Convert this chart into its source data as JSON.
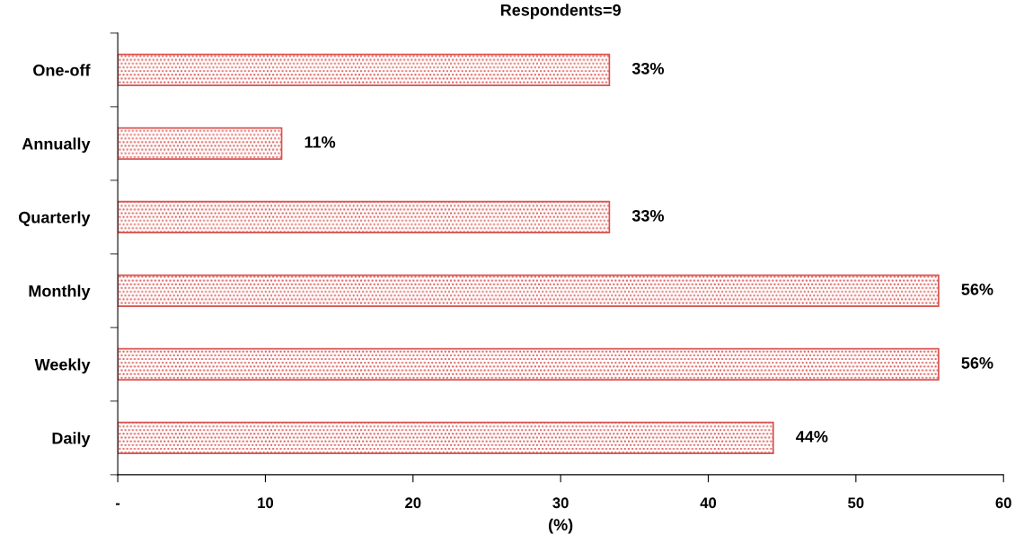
{
  "chart_data": {
    "type": "bar",
    "orientation": "horizontal",
    "title": "Respondents=9",
    "xlabel": "(%)",
    "categories": [
      "One-off",
      "Annually",
      "Quarterly",
      "Monthly",
      "Weekly",
      "Daily"
    ],
    "values": [
      33.3,
      11.1,
      33.3,
      55.6,
      55.6,
      44.4
    ],
    "value_labels": [
      "33%",
      "11%",
      "33%",
      "56%",
      "56%",
      "44%"
    ],
    "color": "#d9534f",
    "xlim": [
      0,
      60
    ],
    "xticks": [
      {
        "value": 0,
        "label": "-"
      },
      10,
      20,
      30,
      40,
      50,
      60
    ],
    "grid": false,
    "legend": false
  }
}
